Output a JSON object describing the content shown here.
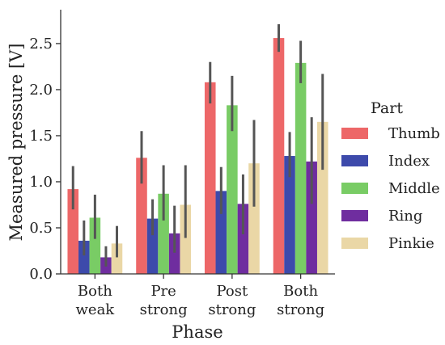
{
  "chart_data": {
    "type": "bar",
    "xlabel": "Phase",
    "ylabel": "Measured pressure [V]",
    "categories": [
      [
        "Both",
        "weak"
      ],
      [
        "Pre",
        "strong"
      ],
      [
        "Post",
        "strong"
      ],
      [
        "Both",
        "strong"
      ]
    ],
    "ylim": [
      0,
      2.85
    ],
    "yticks": [
      "0.0",
      "0.5",
      "1.0",
      "1.5",
      "2.0",
      "2.5"
    ],
    "grid": false,
    "legend": {
      "title": "Part",
      "placement": "right"
    },
    "series": [
      {
        "name": "Thumb",
        "color": "#ed6768",
        "values": [
          0.92,
          1.26,
          2.08,
          2.56
        ],
        "err_low": [
          0.7,
          0.98,
          1.85,
          2.41
        ],
        "err_high": [
          1.17,
          1.55,
          2.3,
          2.71
        ]
      },
      {
        "name": "Index",
        "color": "#3d4aab",
        "values": [
          0.36,
          0.6,
          0.9,
          1.28
        ],
        "err_low": [
          0.2,
          0.42,
          0.65,
          1.05
        ],
        "err_high": [
          0.58,
          0.81,
          1.16,
          1.54
        ]
      },
      {
        "name": "Middle",
        "color": "#79cc65",
        "values": [
          0.61,
          0.87,
          1.83,
          2.29
        ],
        "err_low": [
          0.38,
          0.58,
          1.55,
          2.07
        ],
        "err_high": [
          0.86,
          1.18,
          2.15,
          2.53
        ]
      },
      {
        "name": "Ring",
        "color": "#6f2d9f",
        "values": [
          0.18,
          0.44,
          0.76,
          1.22
        ],
        "err_low": [
          0.08,
          0.23,
          0.43,
          0.76
        ],
        "err_high": [
          0.3,
          0.74,
          1.08,
          1.7
        ]
      },
      {
        "name": "Pinkie",
        "color": "#ead7a6",
        "values": [
          0.33,
          0.75,
          1.2,
          1.65
        ],
        "err_low": [
          0.18,
          0.39,
          0.73,
          1.13
        ],
        "err_high": [
          0.52,
          1.18,
          1.67,
          2.17
        ]
      }
    ]
  }
}
